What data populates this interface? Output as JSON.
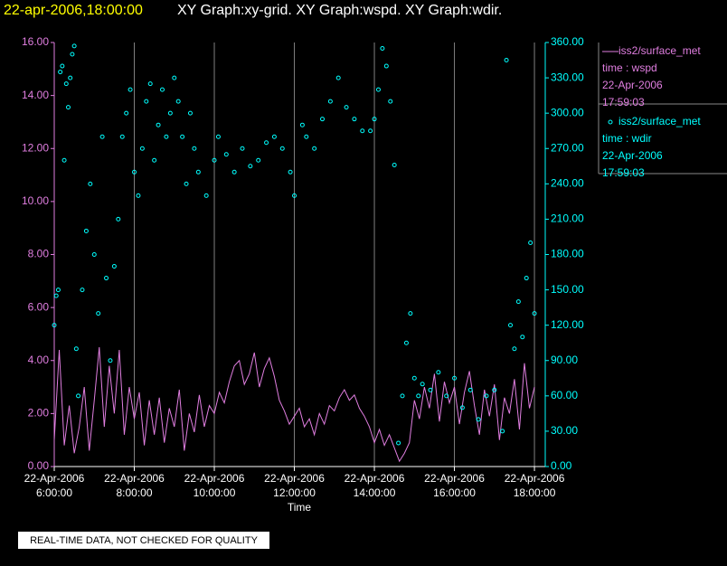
{
  "chart_data": {
    "type": "line",
    "timestamp": "22-apr-2006,18:00:00",
    "title": "XY Graph:xy-grid.  XY Graph:wspd.  XY Graph:wdir.",
    "xlabel": "Time",
    "note": "REAL-TIME DATA, NOT CHECKED FOR QUALITY",
    "grid": true,
    "xlim": [
      6,
      18.27
    ],
    "xticks": [
      {
        "value": 6,
        "label": "22-Apr-2006\n6:00:00"
      },
      {
        "value": 8,
        "label": "22-Apr-2006\n8:00:00"
      },
      {
        "value": 10,
        "label": "22-Apr-2006\n10:00:00"
      },
      {
        "value": 12,
        "label": "22-Apr-2006\n12:00:00"
      },
      {
        "value": 14,
        "label": "22-Apr-2006\n14:00:00"
      },
      {
        "value": 16,
        "label": "22-Apr-2006\n16:00:00"
      },
      {
        "value": 18,
        "label": "22-Apr-2006\n18:00:00"
      }
    ],
    "ylim": [
      0,
      16
    ],
    "yticks": [
      {
        "value": 0,
        "label": "0.00"
      },
      {
        "value": 2,
        "label": "2.00"
      },
      {
        "value": 4,
        "label": "4.00"
      },
      {
        "value": 6,
        "label": "6.00"
      },
      {
        "value": 8,
        "label": "8.00"
      },
      {
        "value": 10,
        "label": "10.00"
      },
      {
        "value": 12,
        "label": "12.00"
      },
      {
        "value": 14,
        "label": "14.00"
      },
      {
        "value": 16,
        "label": "16.00"
      }
    ],
    "y2lim": [
      0,
      360
    ],
    "y2ticks": [
      {
        "value": 0,
        "label": "0.00"
      },
      {
        "value": 30,
        "label": "30.00"
      },
      {
        "value": 60,
        "label": "60.00"
      },
      {
        "value": 90,
        "label": "90.00"
      },
      {
        "value": 120,
        "label": "120.00"
      },
      {
        "value": 150,
        "label": "150.00"
      },
      {
        "value": 180,
        "label": "180.00"
      },
      {
        "value": 210,
        "label": "210.00"
      },
      {
        "value": 240,
        "label": "240.00"
      },
      {
        "value": 270,
        "label": "270.00"
      },
      {
        "value": 300,
        "label": "300.00"
      },
      {
        "value": 330,
        "label": "330.00"
      },
      {
        "value": 360,
        "label": "360.00"
      }
    ],
    "series": [
      {
        "name": "iss2/surface_met",
        "label": "time : wspd",
        "date": "22-Apr-2006",
        "time": "17:59:03",
        "type": "line",
        "color": "#e07ee0",
        "x": [
          6.0,
          6.125,
          6.25,
          6.375,
          6.5,
          6.625,
          6.75,
          6.875,
          7.0,
          7.125,
          7.25,
          7.375,
          7.5,
          7.625,
          7.75,
          7.875,
          8.0,
          8.125,
          8.25,
          8.375,
          8.5,
          8.625,
          8.75,
          8.875,
          9.0,
          9.125,
          9.25,
          9.375,
          9.5,
          9.625,
          9.75,
          9.875,
          10.0,
          10.125,
          10.25,
          10.375,
          10.5,
          10.625,
          10.75,
          10.875,
          11.0,
          11.125,
          11.25,
          11.375,
          11.5,
          11.625,
          11.75,
          11.875,
          12.0,
          12.125,
          12.25,
          12.375,
          12.5,
          12.625,
          12.75,
          12.875,
          13.0,
          13.125,
          13.25,
          13.375,
          13.5,
          13.625,
          13.75,
          13.875,
          14.0,
          14.125,
          14.25,
          14.375,
          14.5,
          14.625,
          14.75,
          14.875,
          15.0,
          15.125,
          15.25,
          15.375,
          15.5,
          15.625,
          15.75,
          15.875,
          16.0,
          16.125,
          16.25,
          16.375,
          16.5,
          16.625,
          16.75,
          16.875,
          17.0,
          17.125,
          17.25,
          17.375,
          17.5,
          17.625,
          17.75,
          17.875,
          18.0
        ],
        "values": [
          1.0,
          4.4,
          0.8,
          2.3,
          0.5,
          1.5,
          3.0,
          0.6,
          2.5,
          4.5,
          1.5,
          3.8,
          2.0,
          4.4,
          1.2,
          3.0,
          1.8,
          2.8,
          0.8,
          2.5,
          1.2,
          2.6,
          0.9,
          2.2,
          1.5,
          2.9,
          0.6,
          2.0,
          1.3,
          2.7,
          1.5,
          2.3,
          2.0,
          2.8,
          2.4,
          3.2,
          3.8,
          4.0,
          3.1,
          3.5,
          4.3,
          3.0,
          3.7,
          4.1,
          3.4,
          2.5,
          2.1,
          1.6,
          1.9,
          2.2,
          1.5,
          1.8,
          1.2,
          2.0,
          1.6,
          2.3,
          2.1,
          2.6,
          2.9,
          2.5,
          2.7,
          2.2,
          1.9,
          1.5,
          0.9,
          1.4,
          0.8,
          1.2,
          0.7,
          0.2,
          0.5,
          0.9,
          2.5,
          1.8,
          3.0,
          2.2,
          3.5,
          1.7,
          3.2,
          2.4,
          3.0,
          1.6,
          2.8,
          3.6,
          2.3,
          1.2,
          2.9,
          1.9,
          3.1,
          1.0,
          2.6,
          2.0,
          3.3,
          1.4,
          3.9,
          2.2,
          3.0
        ]
      },
      {
        "name": "iss2/surface_met",
        "label": "time : wdir",
        "date": "22-Apr-2006",
        "time": "17:59:03",
        "type": "scatter",
        "color": "#00ffff",
        "axis": "y2",
        "x": [
          6.0,
          6.05,
          6.1,
          6.15,
          6.2,
          6.25,
          6.3,
          6.35,
          6.4,
          6.45,
          6.5,
          6.55,
          6.6,
          6.7,
          6.8,
          6.9,
          7.0,
          7.1,
          7.2,
          7.3,
          7.4,
          7.5,
          7.6,
          7.7,
          7.8,
          7.9,
          8.0,
          8.1,
          8.2,
          8.3,
          8.4,
          8.5,
          8.6,
          8.7,
          8.8,
          8.9,
          9.0,
          9.1,
          9.2,
          9.3,
          9.4,
          9.5,
          9.6,
          9.8,
          10.0,
          10.1,
          10.3,
          10.5,
          10.7,
          10.9,
          11.1,
          11.3,
          11.5,
          11.7,
          11.9,
          12.0,
          12.2,
          12.3,
          12.5,
          12.7,
          12.9,
          13.1,
          13.3,
          13.5,
          13.7,
          13.9,
          14.0,
          14.1,
          14.2,
          14.3,
          14.4,
          14.5,
          14.6,
          14.7,
          14.8,
          14.9,
          15.0,
          15.1,
          15.2,
          15.4,
          15.6,
          15.8,
          16.0,
          16.2,
          16.4,
          16.6,
          16.8,
          17.0,
          17.2,
          17.3,
          17.4,
          17.5,
          17.6,
          17.7,
          17.8,
          17.9,
          18.0
        ],
        "values": [
          120,
          145,
          150,
          335,
          340,
          260,
          325,
          305,
          330,
          350,
          357,
          100,
          60,
          150,
          200,
          240,
          180,
          130,
          280,
          160,
          90,
          170,
          210,
          280,
          300,
          320,
          250,
          230,
          270,
          310,
          325,
          260,
          290,
          320,
          280,
          300,
          330,
          310,
          280,
          240,
          300,
          270,
          250,
          230,
          260,
          280,
          265,
          250,
          270,
          255,
          260,
          275,
          280,
          270,
          250,
          230,
          290,
          280,
          270,
          295,
          310,
          330,
          305,
          295,
          285,
          285,
          295,
          320,
          355,
          340,
          310,
          256,
          20,
          60,
          105,
          130,
          75,
          60,
          70,
          65,
          80,
          60,
          75,
          50,
          65,
          40,
          60,
          65,
          30,
          345,
          120,
          100,
          140,
          110,
          160,
          190,
          130
        ]
      }
    ]
  }
}
